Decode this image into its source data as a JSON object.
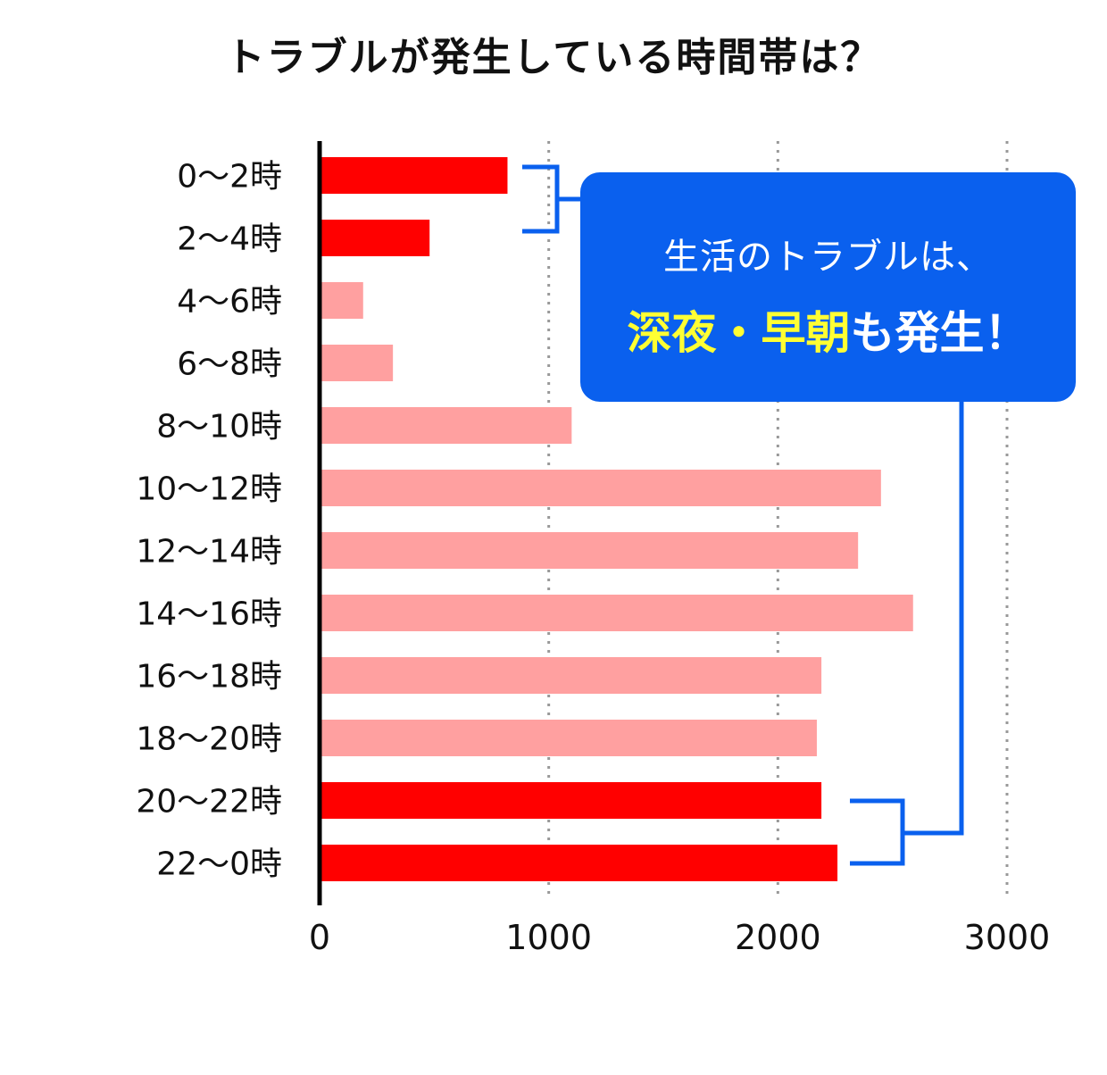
{
  "title": "トラブルが発生している時間帯は？",
  "callout": {
    "line1": "生活のトラブルは、",
    "highlight": "深夜・早朝",
    "rest": "も発生！"
  },
  "colors": {
    "highlight_bar": "#ff0000",
    "normal_bar": "#ffa0a0",
    "callout_bg": "#0a60ee",
    "callout_highlight_text": "#ffff33",
    "bracket": "#0a60ee",
    "grid": "#999999"
  },
  "chart_data": {
    "type": "bar",
    "orientation": "horizontal",
    "categories": [
      "0〜2時",
      "2〜4時",
      "4〜6時",
      "6〜8時",
      "8〜10時",
      "10〜12時",
      "12〜14時",
      "14〜16時",
      "16〜18時",
      "18〜20時",
      "20〜22時",
      "22〜0時"
    ],
    "values": [
      820,
      480,
      190,
      320,
      1100,
      2450,
      2350,
      2590,
      2190,
      2170,
      2190,
      2260
    ],
    "highlighted": [
      true,
      true,
      false,
      false,
      false,
      false,
      false,
      false,
      false,
      false,
      true,
      true
    ],
    "xlim": [
      0,
      3000
    ],
    "xticks": [
      0,
      1000,
      2000,
      3000
    ],
    "xtick_labels": [
      "0",
      "1000",
      "2000",
      "3000"
    ],
    "grid": "vertical dotted"
  }
}
